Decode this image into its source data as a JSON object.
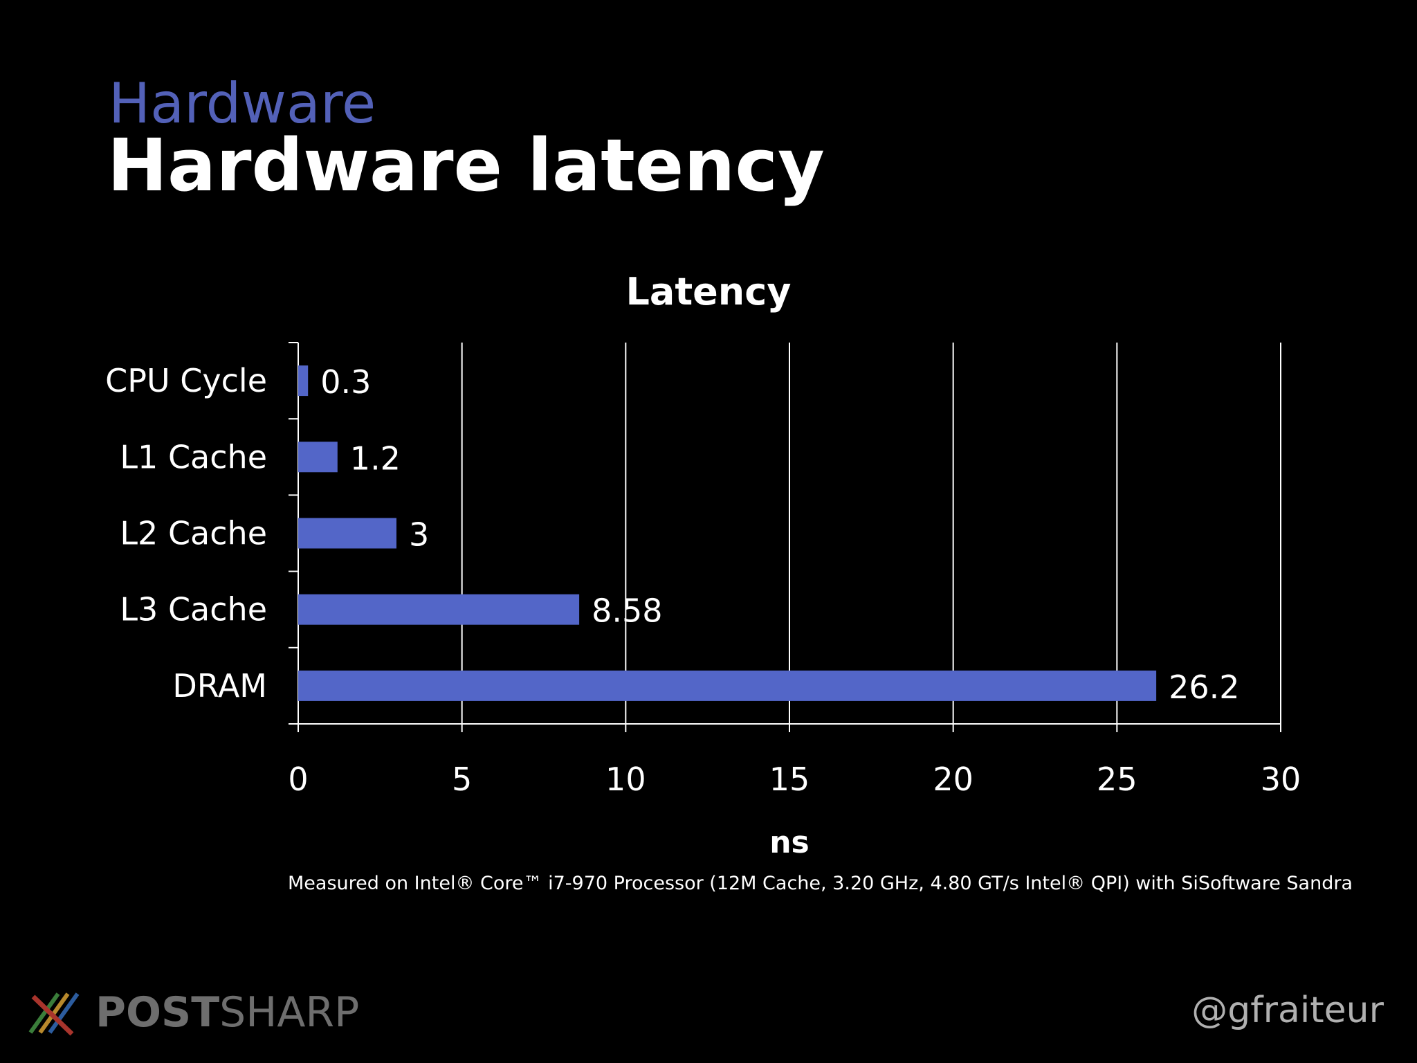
{
  "slide": {
    "section": "Hardware",
    "title": "Hardware latency",
    "footnote": "Measured on Intel® Core™ i7-970 Processor  (12M Cache, 3.20 GHz, 4.80 GT/s Intel® QPI) with SiSoftware Sandra",
    "handle": "@gfraiteur"
  },
  "logo": {
    "icon": "postsharp-logo-icon",
    "brand": "POSTSHARP",
    "text_bold": "POST",
    "text_light": "SHARP"
  },
  "colors": {
    "background": "#000000",
    "section": "#5361b8",
    "bar": "#5366c8",
    "text": "#ffffff",
    "gridline": "#ffffff",
    "brand_text": "#6e6e6e",
    "handle": "#b0b0b0"
  },
  "chart_data": {
    "type": "bar",
    "orientation": "horizontal",
    "title": "Latency",
    "xlabel": "ns",
    "ylabel": "",
    "categories": [
      "CPU Cycle",
      "L1 Cache",
      "L2 Cache",
      "L3 Cache",
      "DRAM"
    ],
    "values": [
      0.3,
      1.2,
      3,
      8.58,
      26.2
    ],
    "data_labels": [
      "0.3",
      "1.2",
      "3",
      "8.58",
      "26.2"
    ],
    "xlim": [
      0,
      30
    ],
    "xticks": [
      0,
      5,
      10,
      15,
      20,
      25,
      30
    ],
    "xtick_labels": [
      "0",
      "5",
      "10",
      "15",
      "20",
      "25",
      "30"
    ],
    "grid": "vertical",
    "legend": "none"
  }
}
